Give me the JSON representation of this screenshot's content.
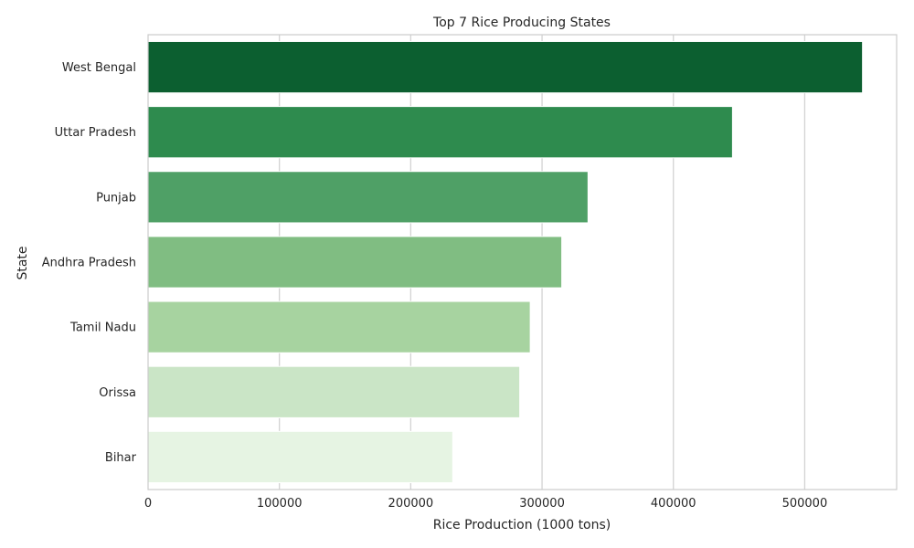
{
  "chart_data": {
    "type": "bar",
    "orientation": "horizontal",
    "title": "Top 7 Rice Producing States",
    "xlabel": "Rice Production (1000 tons)",
    "ylabel": "State",
    "categories": [
      "West Bengal",
      "Uttar Pradesh",
      "Punjab",
      "Andhra Pradesh",
      "Tamil Nadu",
      "Orissa",
      "Bihar"
    ],
    "values": [
      544000,
      445000,
      335000,
      315000,
      291000,
      283000,
      232000
    ],
    "xlim": [
      0,
      570000
    ],
    "xticks": [
      0,
      100000,
      200000,
      300000,
      400000,
      500000
    ],
    "xtick_labels": [
      "0",
      "100000",
      "200000",
      "300000",
      "400000",
      "500000"
    ],
    "colors": [
      "#0c5f30",
      "#2e8b4e",
      "#4fa066",
      "#80bd82",
      "#a7d3a0",
      "#cae5c6",
      "#e6f4e3"
    ],
    "grid": true,
    "legend": "none"
  }
}
